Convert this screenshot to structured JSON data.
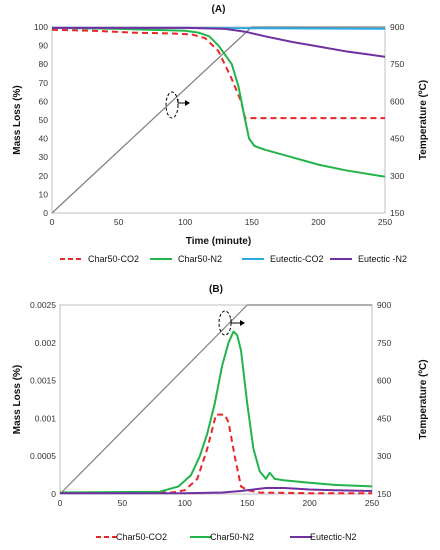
{
  "chart_data": [
    {
      "type": "line",
      "title": "(A)",
      "xlabel": "Time (minute)",
      "ylabel": "Mass Loss (%)",
      "y2label": "Temperature (ºC)",
      "xlim": [
        0,
        250
      ],
      "ylim": [
        0,
        100
      ],
      "y2lim": [
        150,
        900
      ],
      "x_ticks": [
        "0",
        "50",
        "100",
        "150",
        "200",
        "250"
      ],
      "y_ticks": [
        "0",
        "10",
        "20",
        "30",
        "40",
        "50",
        "60",
        "70",
        "80",
        "90",
        "100"
      ],
      "y2_ticks": [
        "150",
        "300",
        "450",
        "600",
        "750",
        "900"
      ],
      "grid": false,
      "legend_position": "bottom",
      "series": [
        {
          "name": "Char50-CO2",
          "color": "#e8262a",
          "dash": "dashed",
          "axis": "left",
          "x": [
            0,
            30,
            60,
            90,
            105,
            115,
            125,
            135,
            142,
            145,
            250
          ],
          "y": [
            98.5,
            98,
            97,
            96.5,
            96,
            94,
            87,
            72,
            60,
            51,
            51
          ]
        },
        {
          "name": "Char50-N2",
          "color": "#22b44a",
          "dash": "solid",
          "axis": "left",
          "x": [
            0,
            50,
            100,
            110,
            118,
            125,
            130,
            135,
            140,
            145,
            148,
            152,
            160,
            180,
            200,
            220,
            250
          ],
          "y": [
            99.5,
            99,
            98,
            97,
            95,
            90,
            85,
            80,
            68,
            50,
            40,
            36,
            34,
            30,
            26,
            23,
            19.5
          ]
        },
        {
          "name": "Eutectic-CO2",
          "color": "#27aae1",
          "dash": "solid",
          "axis": "left",
          "x": [
            0,
            100,
            150,
            200,
            250
          ],
          "y": [
            99.5,
            99.5,
            99.3,
            99.2,
            99.1
          ]
        },
        {
          "name": "Eutectic -N2",
          "color": "#7030a0",
          "dash": "solid",
          "axis": "left",
          "x": [
            0,
            100,
            130,
            145,
            160,
            180,
            200,
            220,
            240,
            250
          ],
          "y": [
            99.5,
            99.5,
            99,
            97.5,
            95,
            92,
            89.5,
            87,
            85,
            84
          ]
        },
        {
          "name": "Temperature",
          "color": "#7f7f7f",
          "dash": "solid",
          "axis": "right",
          "x": [
            0,
            150,
            250
          ],
          "y": [
            150,
            900,
            900
          ]
        }
      ]
    },
    {
      "type": "line",
      "title": "(B)",
      "xlabel": "",
      "ylabel": "Mass Loss (%)",
      "y2label": "Temperature (ºC)",
      "xlim": [
        0,
        250
      ],
      "ylim": [
        0,
        0.0025
      ],
      "y2lim": [
        150,
        900
      ],
      "x_ticks": [
        "0",
        "50",
        "100",
        "150",
        "200",
        "250"
      ],
      "y_ticks": [
        "0",
        "0.0005",
        "0.001",
        "0.0015",
        "0.002",
        "0.0025"
      ],
      "y2_ticks": [
        "150",
        "300",
        "450",
        "600",
        "750",
        "900"
      ],
      "grid": false,
      "legend_position": "bottom",
      "series": [
        {
          "name": "Char50-CO2",
          "color": "#e8262a",
          "dash": "dashed",
          "axis": "left",
          "x": [
            0,
            90,
            100,
            110,
            118,
            125,
            132,
            135,
            140,
            145,
            150,
            160,
            200,
            250
          ],
          "y": [
            2e-05,
            2e-05,
            5e-05,
            0.0002,
            0.0006,
            0.00105,
            0.00105,
            0.00095,
            0.0005,
            0.0001,
            5e-05,
            2e-05,
            1e-05,
            1e-05
          ]
        },
        {
          "name": "Char50-N2",
          "color": "#22b44a",
          "dash": "solid",
          "axis": "left",
          "x": [
            0,
            80,
            95,
            105,
            112,
            118,
            124,
            130,
            135,
            139,
            142,
            145,
            150,
            155,
            160,
            165,
            168,
            172,
            180,
            200,
            220,
            250
          ],
          "y": [
            2e-05,
            3e-05,
            0.0001,
            0.00025,
            0.0005,
            0.0008,
            0.0012,
            0.0017,
            0.002,
            0.00215,
            0.0021,
            0.0019,
            0.0012,
            0.0006,
            0.0003,
            0.0002,
            0.00028,
            0.0002,
            0.00018,
            0.00015,
            0.00012,
            0.0001
          ]
        },
        {
          "name": "Eutectic-N2",
          "color": "#7030a0",
          "dash": "solid",
          "axis": "left",
          "x": [
            0,
            100,
            130,
            145,
            155,
            165,
            180,
            200,
            220,
            250
          ],
          "y": [
            1e-05,
            1e-05,
            2e-05,
            4e-05,
            6e-05,
            8e-05,
            8e-05,
            6e-05,
            5e-05,
            4e-05
          ]
        },
        {
          "name": "Temperature",
          "color": "#7f7f7f",
          "dash": "solid",
          "axis": "right",
          "x": [
            0,
            150,
            250
          ],
          "y": [
            150,
            900,
            900
          ]
        }
      ]
    }
  ]
}
